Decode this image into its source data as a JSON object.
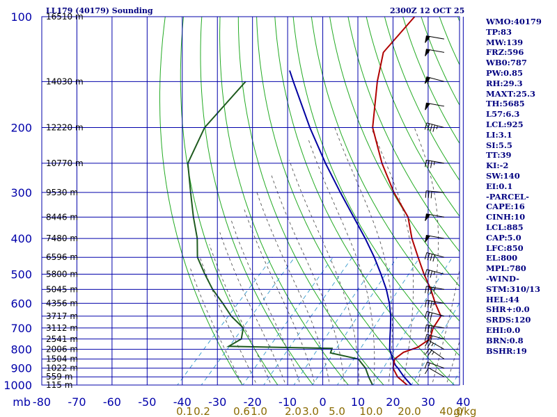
{
  "title": "LL179 (40179) Sounding",
  "valid_time": "2300Z 12 OCT 25",
  "colors": {
    "axes": "#0000aa",
    "temperature": "#b00000",
    "dewpoint": "#1e5a1e",
    "parcel": "#0000a0",
    "dry_adiabat": "#22aa22",
    "moist_adiabat": "#555555",
    "mixing_ratio": "#3399cc",
    "axis_text": "#0000aa",
    "mixing_text": "#8a6a00"
  },
  "chart_data": {
    "type": "skew-t",
    "pressure_axis_label": "mb",
    "pressure_ticks": [
      100,
      200,
      300,
      400,
      500,
      600,
      700,
      800,
      900,
      1000
    ],
    "temperature_ticks": [
      -80,
      -70,
      -60,
      -50,
      -40,
      -30,
      -20,
      -10,
      0,
      10,
      20,
      30,
      40
    ],
    "mixing_ratio_unit": "g/kg",
    "mixing_ratio_labels": [
      "0.1",
      "0.2",
      "0.6",
      "1.0",
      "2.0",
      "3.0",
      "5.0",
      "10.0",
      "20.0",
      "40.0"
    ],
    "height_labels": [
      {
        "p": 100,
        "label": "16510 m"
      },
      {
        "p": 150,
        "label": "14030 m"
      },
      {
        "p": 200,
        "label": "12220 m"
      },
      {
        "p": 250,
        "label": "10770 m"
      },
      {
        "p": 300,
        "label": "9530 m"
      },
      {
        "p": 350,
        "label": "8446 m"
      },
      {
        "p": 400,
        "label": "7480 m"
      },
      {
        "p": 450,
        "label": "6596 m"
      },
      {
        "p": 500,
        "label": "5800 m"
      },
      {
        "p": 550,
        "label": "5045 m"
      },
      {
        "p": 600,
        "label": "4356 m"
      },
      {
        "p": 650,
        "label": "3717 m"
      },
      {
        "p": 700,
        "label": "3112 m"
      },
      {
        "p": 750,
        "label": "2541 m"
      },
      {
        "p": 800,
        "label": "2006 m"
      },
      {
        "p": 850,
        "label": "1504 m"
      },
      {
        "p": 900,
        "label": "1022 m"
      },
      {
        "p": 950,
        "label": "559 m"
      },
      {
        "p": 1000,
        "label": "115 m"
      }
    ],
    "temperature_profile": [
      {
        "p": 1010,
        "t": 23.9
      },
      {
        "p": 1000,
        "t": 23.5
      },
      {
        "p": 950,
        "t": 18.6
      },
      {
        "p": 900,
        "t": 15.0
      },
      {
        "p": 850,
        "t": 13.0
      },
      {
        "p": 815,
        "t": 13.7
      },
      {
        "p": 790,
        "t": 16.4
      },
      {
        "p": 750,
        "t": 17.6
      },
      {
        "p": 700,
        "t": 15.6
      },
      {
        "p": 650,
        "t": 14.6
      },
      {
        "p": 600,
        "t": 9.6
      },
      {
        "p": 550,
        "t": 4.6
      },
      {
        "p": 500,
        "t": -1.4
      },
      {
        "p": 450,
        "t": -7.6
      },
      {
        "p": 400,
        "t": -14.4
      },
      {
        "p": 350,
        "t": -21.2
      },
      {
        "p": 300,
        "t": -31.8
      },
      {
        "p": 250,
        "t": -43.0
      },
      {
        "p": 200,
        "t": -55.2
      },
      {
        "p": 150,
        "t": -66.2
      },
      {
        "p": 125,
        "t": -72.3
      },
      {
        "p": 100,
        "t": -73.0
      }
    ],
    "dewpoint_profile": [
      {
        "p": 1010,
        "t": 14.3
      },
      {
        "p": 1000,
        "t": 13.7
      },
      {
        "p": 950,
        "t": 10.4
      },
      {
        "p": 900,
        "t": 7.2
      },
      {
        "p": 850,
        "t": 2.7
      },
      {
        "p": 818,
        "t": -6.8
      },
      {
        "p": 795,
        "t": -7.6
      },
      {
        "p": 785,
        "t": -37.4
      },
      {
        "p": 750,
        "t": -35.8
      },
      {
        "p": 700,
        "t": -38.2
      },
      {
        "p": 650,
        "t": -44.8
      },
      {
        "p": 600,
        "t": -50.6
      },
      {
        "p": 550,
        "t": -57.2
      },
      {
        "p": 500,
        "t": -63.5
      },
      {
        "p": 450,
        "t": -70.1
      },
      {
        "p": 400,
        "t": -75.2
      },
      {
        "p": 350,
        "t": -82.0
      },
      {
        "p": 300,
        "t": -89.4
      },
      {
        "p": 250,
        "t": -98.0
      },
      {
        "p": 200,
        "t": -102.8
      },
      {
        "p": 150,
        "t": -103.5
      }
    ],
    "parcel_profile": [
      {
        "p": 1010,
        "t": 25.5
      },
      {
        "p": 950,
        "t": 20.4
      },
      {
        "p": 900,
        "t": 16.4
      },
      {
        "p": 885,
        "t": 15.0
      },
      {
        "p": 850,
        "t": 12.4
      },
      {
        "p": 800,
        "t": 9.0
      },
      {
        "p": 750,
        "t": 6.3
      },
      {
        "p": 700,
        "t": 3.5
      },
      {
        "p": 650,
        "t": 0.4
      },
      {
        "p": 600,
        "t": -3.4
      },
      {
        "p": 550,
        "t": -8.0
      },
      {
        "p": 500,
        "t": -13.6
      },
      {
        "p": 450,
        "t": -20.0
      },
      {
        "p": 400,
        "t": -27.6
      },
      {
        "p": 350,
        "t": -36.6
      },
      {
        "p": 300,
        "t": -47.0
      },
      {
        "p": 250,
        "t": -59.0
      },
      {
        "p": 200,
        "t": -73.0
      },
      {
        "p": 150,
        "t": -90.0
      },
      {
        "p": 140,
        "t": -94.0
      }
    ],
    "wind_barbs": [
      {
        "p": 950,
        "direction": 300,
        "speed": 10
      },
      {
        "p": 900,
        "direction": 290,
        "speed": 15
      },
      {
        "p": 850,
        "direction": 305,
        "speed": 25
      },
      {
        "p": 800,
        "direction": 300,
        "speed": 25
      },
      {
        "p": 750,
        "direction": 285,
        "speed": 30
      },
      {
        "p": 700,
        "direction": 280,
        "speed": 30
      },
      {
        "p": 650,
        "direction": 285,
        "speed": 30
      },
      {
        "p": 600,
        "direction": 280,
        "speed": 35
      },
      {
        "p": 550,
        "direction": 280,
        "speed": 35
      },
      {
        "p": 500,
        "direction": 285,
        "speed": 35
      },
      {
        "p": 450,
        "direction": 285,
        "speed": 40
      },
      {
        "p": 400,
        "direction": 280,
        "speed": 50
      },
      {
        "p": 350,
        "direction": 280,
        "speed": 55
      },
      {
        "p": 300,
        "direction": 275,
        "speed": 30
      },
      {
        "p": 250,
        "direction": 280,
        "speed": 35
      },
      {
        "p": 200,
        "direction": 285,
        "speed": 45
      },
      {
        "p": 175,
        "direction": 280,
        "speed": 50
      },
      {
        "p": 150,
        "direction": 285,
        "speed": 60
      },
      {
        "p": 125,
        "direction": 280,
        "speed": 55
      },
      {
        "p": 115,
        "direction": 280,
        "speed": 55
      }
    ]
  },
  "indices": [
    "WMO:40179",
    "TP:83",
    "MW:139",
    "FRZ:596",
    "WB0:787",
    "PW:0.85",
    "RH:29.3",
    "MAXT:25.3",
    "TH:5685",
    "L57:6.3",
    "LCL:925",
    "LI:3.1",
    "SI:5.5",
    "TT:39",
    "KI:-2",
    "SW:140",
    "EI:0.1",
    "-PARCEL-",
    "CAPE:16",
    "CINH:10",
    "LCL:885",
    "CAP:5.0",
    "LFC:850",
    "EL:800",
    "MPL:780",
    "-WIND-",
    "STM:310/13",
    "HEL:44",
    "SHR+:0.0",
    "SRDS:120",
    "EHI:0.0",
    "BRN:0.8",
    "BSHR:19"
  ]
}
